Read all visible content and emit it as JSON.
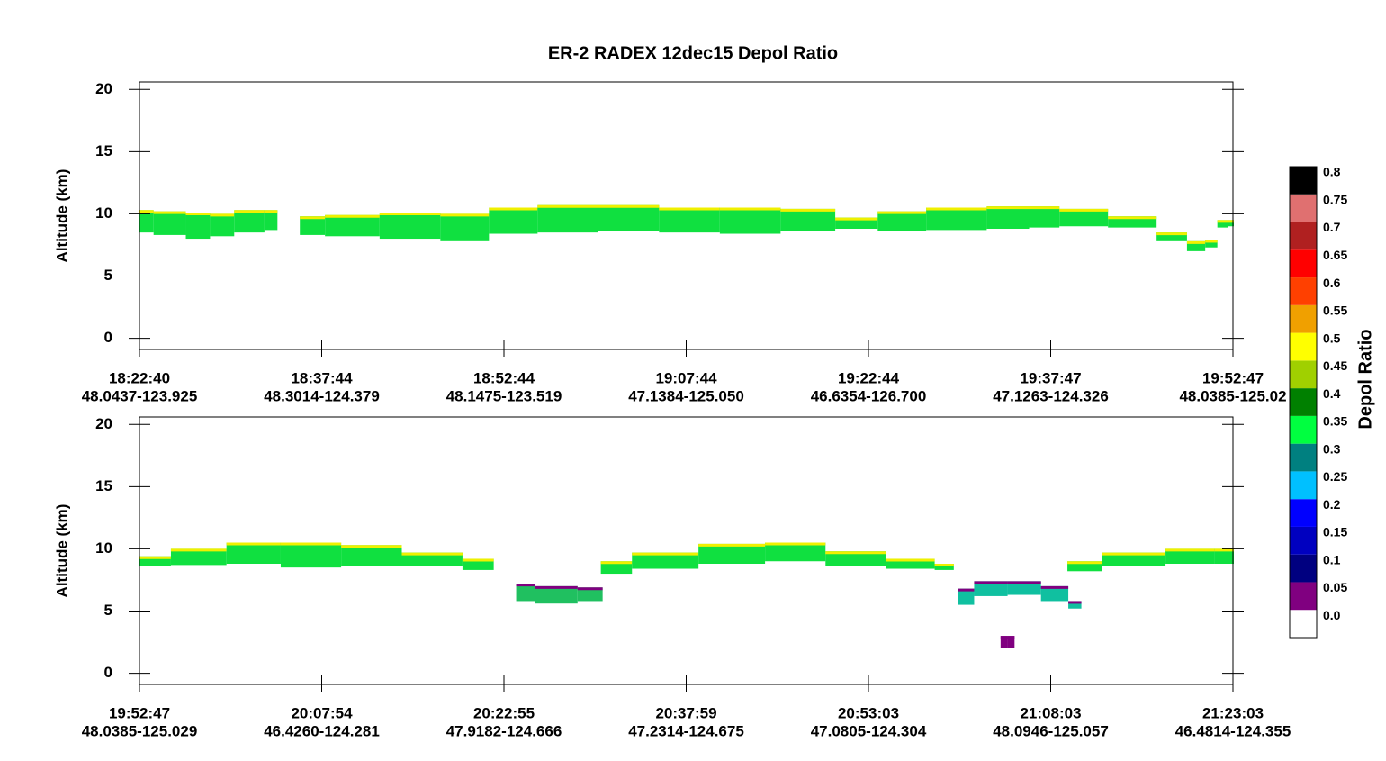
{
  "chart_data": {
    "type": "curtain",
    "title": "ER-2 RADEX 12dec15 Depol Ratio",
    "panels": [
      {
        "ylabel": "Altitude (km)",
        "ylim": [
          -0.9,
          20.6
        ],
        "yticks": [
          0,
          5,
          10,
          15,
          20
        ],
        "xtick_times": [
          "18:22:40",
          "18:37:44",
          "18:52:44",
          "19:07:44",
          "19:22:44",
          "19:37:47",
          "19:52:47"
        ],
        "xtick_locations": [
          "48.0437-123.925",
          "48.3014-124.379",
          "48.1475-123.519",
          "47.1384-125.050",
          "46.6354-126.700",
          "47.1263-124.326",
          "48.0385-125.02"
        ],
        "layers": [
          {
            "color": "#10e040",
            "edge": "#f0f000",
            "x": [
              "18:22:40",
              "18:25:00",
              "18:28:00",
              "18:29:00",
              "18:32:00",
              "18:34:00",
              "18:35:00",
              "18:36:00",
              "18:40:00",
              "18:45:00",
              "18:50:00",
              "18:53:00",
              "18:58:00",
              "19:03:00",
              "19:08:00",
              "19:13:00",
              "19:18:00",
              "19:22:00",
              "19:25:00",
              "19:30:00",
              "19:35:00",
              "19:37:00",
              "19:40:00",
              "19:45:00",
              "19:48:00",
              "19:50:00",
              "19:51:00",
              "19:52:00",
              "19:52:47"
            ],
            "top": [
              10.3,
              10.2,
              10.1,
              10.0,
              10.3,
              10.3,
              null,
              9.8,
              9.9,
              10.1,
              10.0,
              10.5,
              10.7,
              10.7,
              10.5,
              10.5,
              10.4,
              9.7,
              10.2,
              10.5,
              10.6,
              10.6,
              10.4,
              9.8,
              8.5,
              7.8,
              7.9,
              9.5,
              9.5
            ],
            "base": [
              8.5,
              8.3,
              8.0,
              8.2,
              8.5,
              8.7,
              null,
              8.3,
              8.2,
              8.0,
              7.8,
              8.4,
              8.5,
              8.6,
              8.5,
              8.4,
              8.6,
              8.8,
              8.6,
              8.7,
              8.8,
              8.9,
              9.0,
              8.9,
              7.8,
              7.0,
              7.3,
              8.9,
              9.0
            ]
          }
        ]
      },
      {
        "ylabel": "Altitude (km)",
        "ylim": [
          -0.9,
          20.6
        ],
        "yticks": [
          0,
          5,
          10,
          15,
          20
        ],
        "xtick_times": [
          "19:52:47",
          "20:07:54",
          "20:22:55",
          "20:37:59",
          "20:53:03",
          "21:08:03",
          "21:23:03"
        ],
        "xtick_locations": [
          "48.0385-125.029",
          "46.4260-124.281",
          "47.9182-124.666",
          "47.2314-124.675",
          "47.0805-124.304",
          "48.0946-125.057",
          "46.4814-124.355"
        ],
        "layers": [
          {
            "color": "#10e040",
            "edge": "#f0f000",
            "x": [
              "19:52:47",
              "19:58:00",
              "20:02:00",
              "20:07:00",
              "20:12:00",
              "20:17:00",
              "20:22:00",
              "20:23:00",
              "20:31:00",
              "20:36:00",
              "20:42:00",
              "20:47:00",
              "20:52:00",
              "20:57:00",
              "21:00:00",
              "21:01:00",
              "21:09:30",
              "21:15:00",
              "21:20:00",
              "21:23:03"
            ],
            "top": [
              9.4,
              10.0,
              10.5,
              10.5,
              10.3,
              9.7,
              9.2,
              null,
              9.0,
              9.7,
              10.4,
              10.5,
              9.8,
              9.2,
              8.8,
              null,
              9.0,
              9.7,
              10.0,
              10.0
            ],
            "base": [
              8.6,
              8.7,
              8.8,
              8.5,
              8.6,
              8.6,
              8.3,
              null,
              8.0,
              8.4,
              8.8,
              9.0,
              8.6,
              8.4,
              8.3,
              null,
              8.2,
              8.6,
              8.8,
              8.8
            ]
          },
          {
            "color": "#20c060",
            "edge": "#800080",
            "x": [
              "20:24:00",
              "20:27:00",
              "20:31:00"
            ],
            "top": [
              7.2,
              7.0,
              6.9
            ],
            "base": [
              5.8,
              5.6,
              5.8
            ]
          },
          {
            "color": "#10c0a0",
            "edge": "#800080",
            "x": [
              "21:00:30",
              "21:03:00",
              "21:06:00",
              "21:08:30",
              "21:10:30"
            ],
            "top": [
              6.8,
              7.4,
              7.4,
              7.0,
              5.8
            ],
            "base": [
              5.5,
              6.2,
              6.3,
              5.8,
              5.2
            ]
          },
          {
            "color": "#800080",
            "edge": "#800080",
            "x": [
              "21:04:00",
              "21:05:00"
            ],
            "top": [
              3.0,
              3.0
            ],
            "base": [
              2.0,
              2.0
            ]
          }
        ]
      }
    ],
    "colorbar": {
      "label": "Depol Ratio",
      "ticks": [
        {
          "value": 0,
          "label": "0.0"
        },
        0.05,
        0.1,
        0.15,
        0.2,
        0.25,
        0.3,
        0.35,
        0.4,
        0.45,
        0.5,
        0.55,
        0.6,
        0.65,
        0.7,
        0.75,
        0.8
      ],
      "colors": [
        "#ffffff",
        "#800080",
        "#000080",
        "#0000c0",
        "#0000ff",
        "#00c0ff",
        "#008080",
        "#00ff40",
        "#008000",
        "#a0d000",
        "#ffff00",
        "#f0a000",
        "#ff4000",
        "#ff0000",
        "#b02020",
        "#e07070",
        "#000000"
      ]
    }
  }
}
